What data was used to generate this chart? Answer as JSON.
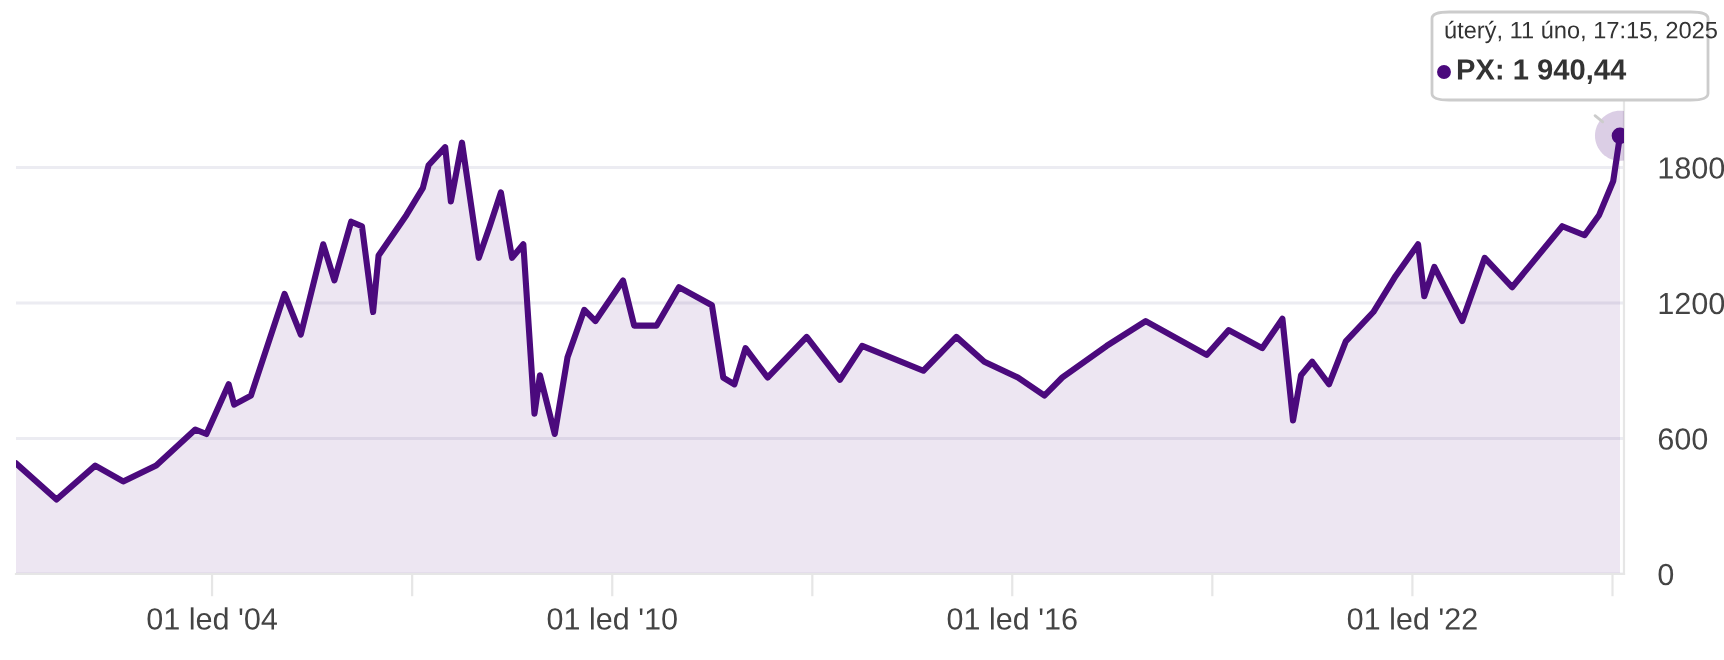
{
  "chart_data": {
    "type": "area",
    "x": [
      "2001-01-22",
      "2001-09",
      "2002-04",
      "2002-09",
      "2003-03",
      "2003-10",
      "2003-12",
      "2004-04",
      "2004-05",
      "2004-08",
      "2005-02",
      "2005-05",
      "2005-09",
      "2005-11",
      "2006-02",
      "2006-04",
      "2006-06",
      "2006-07",
      "2006-12",
      "2007-03",
      "2007-04",
      "2007-07",
      "2007-08",
      "2007-10",
      "2008-01",
      "2008-03",
      "2008-05",
      "2008-07",
      "2008-09",
      "2008-11",
      "2008-12",
      "2009-02-20",
      "2009-05",
      "2009-08",
      "2009-10",
      "2010-03",
      "2010-05",
      "2010-09",
      "2011-01",
      "2011-07",
      "2011-09",
      "2011-11",
      "2012-01",
      "2012-05",
      "2012-12",
      "2013-06",
      "2013-10",
      "2014-09",
      "2015-03",
      "2015-08",
      "2016-02",
      "2016-06-25",
      "2016-10",
      "2017-06",
      "2018-01",
      "2018-12",
      "2019-04",
      "2019-10",
      "2020-01-20",
      "2020-03-18",
      "2020-05",
      "2020-07",
      "2020-10",
      "2021-01",
      "2021-06",
      "2021-10",
      "2022-02-01",
      "2022-03-07",
      "2022-05",
      "2022-10",
      "2023-02",
      "2023-07",
      "2023-10",
      "2024-04",
      "2024-08",
      "2024-10-20",
      "2025-01-05",
      "2025-02-11"
    ],
    "series": [
      {
        "color": "#4b0a7d",
        "values": [
          490,
          330,
          480,
          410,
          480,
          640,
          620,
          840,
          750,
          790,
          1240,
          1060,
          1460,
          1300,
          1560,
          1540,
          1160,
          1410,
          1590,
          1710,
          1810,
          1890,
          1650,
          1910,
          1400,
          1540,
          1690,
          1400,
          1460,
          710,
          880,
          620,
          960,
          1170,
          1120,
          1300,
          1100,
          1100,
          1270,
          1190,
          870,
          840,
          1000,
          870,
          1050,
          860,
          1010,
          900,
          1050,
          940,
          870,
          790,
          870,
          1010,
          1120,
          970,
          1080,
          1000,
          1130,
          680,
          880,
          940,
          840,
          1030,
          1160,
          1320,
          1460,
          1230,
          1360,
          1120,
          1400,
          1270,
          1360,
          1540,
          1500,
          1590,
          1740,
          1940.44
        ]
      }
    ],
    "xlim": [
      "2001-01-22",
      "2025-03-05"
    ],
    "xticks": [
      {
        "value": "2004-01-01",
        "label": "01 led '04"
      },
      {
        "value": "2007-01-01",
        "label": null
      },
      {
        "value": "2010-01-01",
        "label": "01 led '10"
      },
      {
        "value": "2013-01-01",
        "label": null
      },
      {
        "value": "2016-01-01",
        "label": "01 led '16"
      },
      {
        "value": "2019-01-01",
        "label": null
      },
      {
        "value": "2022-01-01",
        "label": "01 led '22"
      },
      {
        "value": "2025-01-01",
        "label": null
      }
    ],
    "ylim": [
      0,
      2400
    ],
    "yticks": [
      0,
      600,
      1200,
      1800
    ],
    "grid": "y",
    "annotations": [
      "úterý, 11 úno, 17:15, 2025",
      {
        "text": "PX: 1 940,44",
        "x": "2025-02-11",
        "y": 1940.44
      }
    ]
  }
}
